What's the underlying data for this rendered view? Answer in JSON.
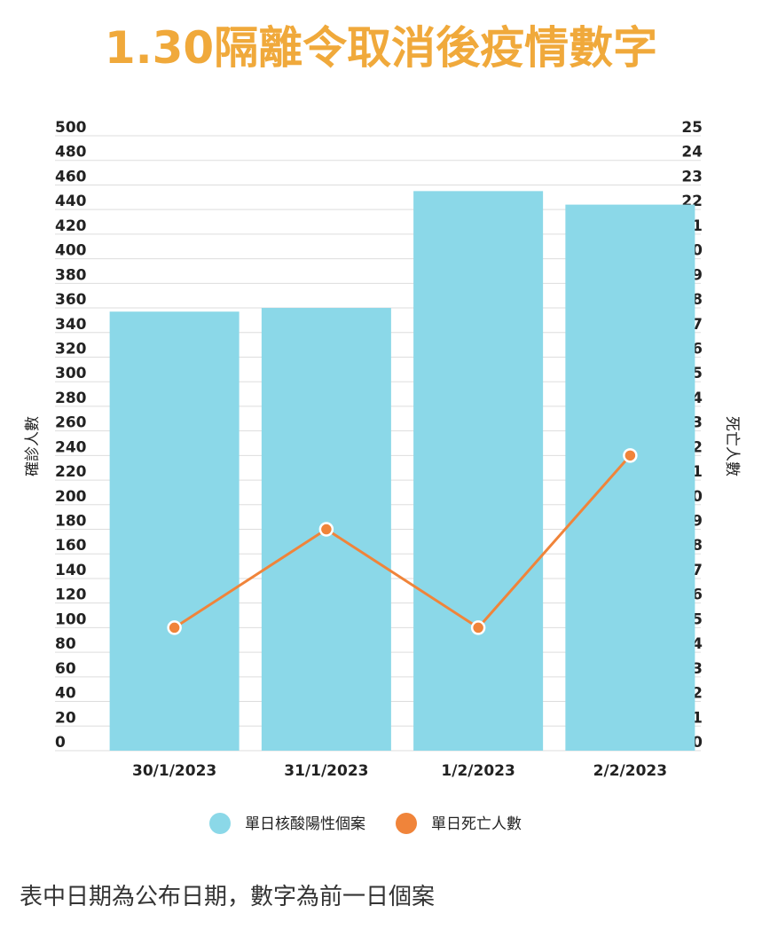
{
  "title": "1.30隔離令取消後疫情數字",
  "footnote": "表中日期為公布日期，數字為前一日個案",
  "colors": {
    "title": "#F0A93B",
    "bar": "#8BD8E8",
    "line": "#F0843A",
    "grid": "#DDDDDD",
    "text": "#222222"
  },
  "chart_data": {
    "type": "bar",
    "categories": [
      "30/1/2023",
      "31/1/2023",
      "1/2/2023",
      "2/2/2023"
    ],
    "series": [
      {
        "name": "單日核酸陽性個案",
        "type": "bar",
        "axis": "left",
        "values": [
          357,
          360,
          455,
          444
        ]
      },
      {
        "name": "單日死亡人數",
        "type": "line",
        "axis": "right",
        "values": [
          5,
          9,
          5,
          12
        ]
      }
    ],
    "ylabel": "確診人數",
    "y2label": "死亡人數",
    "ylim": [
      0,
      500
    ],
    "y2lim": [
      0,
      25
    ],
    "yticks": [
      "500",
      "480",
      "460",
      "440",
      "420",
      "400",
      "380",
      "360",
      "340",
      "320",
      "300",
      "280",
      "260",
      "240",
      "220",
      "200",
      "180",
      "160",
      "140",
      "120",
      "100",
      "80",
      "60",
      "40",
      "20",
      "0"
    ],
    "y2ticks": [
      "25",
      "24",
      "23",
      "22",
      "21",
      "20",
      "19",
      "18",
      "17",
      "16",
      "15",
      "14",
      "13",
      "12",
      "11",
      "10",
      "9",
      "8",
      "7",
      "6",
      "5",
      "4",
      "3",
      "2",
      "1",
      "0"
    ],
    "grid": true,
    "legend": "bottom"
  }
}
